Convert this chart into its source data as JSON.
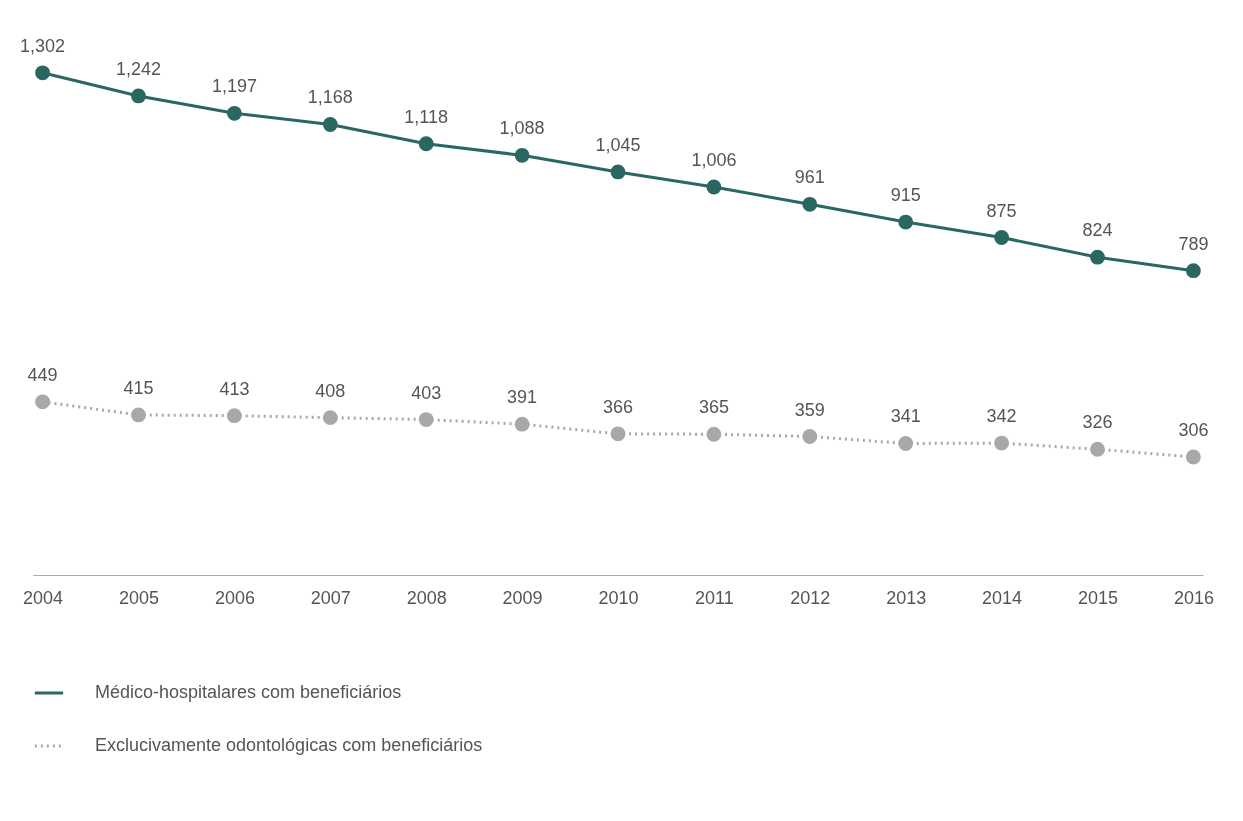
{
  "chart_data": {
    "type": "line",
    "categories": [
      "2004",
      "2005",
      "2006",
      "2007",
      "2008",
      "2009",
      "2010",
      "2011",
      "2012",
      "2013",
      "2014",
      "2015",
      "2016"
    ],
    "series": [
      {
        "name": "Médico-hospitalares com beneficiários",
        "color": "#2a6763",
        "line_style": "solid",
        "values": [
          1302,
          1242,
          1197,
          1168,
          1118,
          1088,
          1045,
          1006,
          961,
          915,
          875,
          824,
          789
        ],
        "value_labels": [
          "1,302",
          "1,242",
          "1,197",
          "1,168",
          "1,118",
          "1,088",
          "1,045",
          "1,006",
          "961",
          "915",
          "875",
          "824",
          "789"
        ]
      },
      {
        "name": "Exclucivamente odontológicas com beneficiários",
        "color": "#a8a8aa",
        "line_style": "dotted",
        "values": [
          449,
          415,
          413,
          408,
          403,
          391,
          366,
          365,
          359,
          341,
          342,
          326,
          306
        ],
        "value_labels": [
          "449",
          "415",
          "413",
          "408",
          "403",
          "391",
          "366",
          "365",
          "359",
          "341",
          "342",
          "326",
          "306"
        ]
      }
    ],
    "tick_labels": "x",
    "marker": "circle",
    "legend": "bottom"
  }
}
